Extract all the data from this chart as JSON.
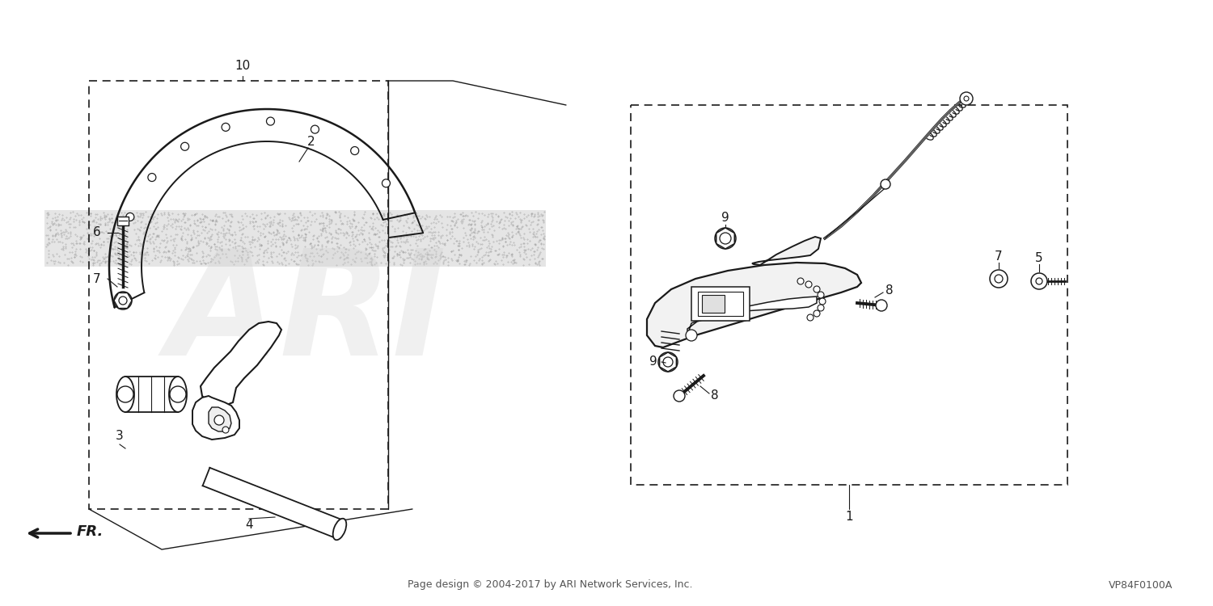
{
  "bg_color": "#ffffff",
  "footer_text": "Page design © 2004-2017 by ARI Network Services, Inc.",
  "part_code": "VP84F0100A",
  "watermark_text": "ARI",
  "line_color": "#1a1a1a",
  "light_gray": "#c8c8c8",
  "font_size_label": 11,
  "font_size_footer": 9,
  "shaded_band_color": "#cccccc",
  "shaded_band_alpha": 0.5
}
